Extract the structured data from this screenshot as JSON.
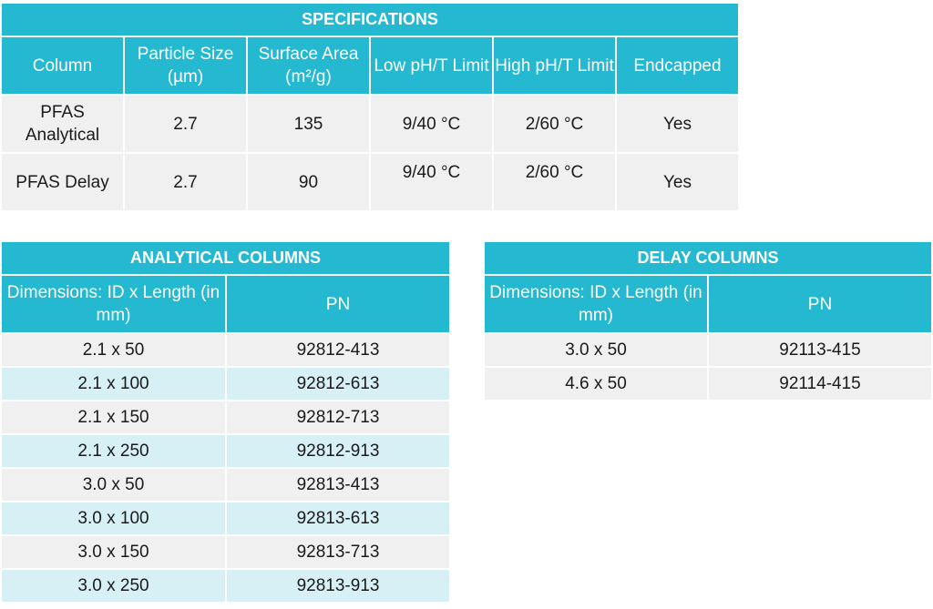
{
  "specifications": {
    "title": "SPECIFICATIONS",
    "headers": [
      "Column",
      "Particle Size (µm)",
      "Surface Area (m²/g)",
      "Low pH/T Limit",
      "High pH/T Limit",
      "Endcapped"
    ],
    "rows": [
      [
        "PFAS Analytical",
        "2.7",
        "135",
        "9/40 °C",
        "2/60 °C",
        "Yes"
      ],
      [
        "PFAS Delay",
        "2.7",
        "90",
        "9/40 °C",
        "2/60 °C",
        "Yes"
      ]
    ]
  },
  "analytical": {
    "title": "ANALYTICAL COLUMNS",
    "headers": [
      "Dimensions: ID x Length (in mm)",
      "PN"
    ],
    "rows": [
      [
        "2.1 x 50",
        "92812-413"
      ],
      [
        "2.1 x 100",
        "92812-613"
      ],
      [
        "2.1 x 150",
        "92812-713"
      ],
      [
        "2.1 x 250",
        "92812-913"
      ],
      [
        "3.0 x 50",
        "92813-413"
      ],
      [
        "3.0 x 100",
        "92813-613"
      ],
      [
        "3.0 x 150",
        "92813-713"
      ],
      [
        "3.0 x 250",
        "92813-913"
      ]
    ]
  },
  "delay": {
    "title": "DELAY COLUMNS",
    "headers": [
      "Dimensions: ID x Length (in mm)",
      "PN"
    ],
    "rows": [
      [
        "3.0 x 50",
        "92113-415"
      ],
      [
        "4.6 x 50",
        "92114-415"
      ]
    ]
  },
  "colors": {
    "accent": "#24b9d0",
    "row_gray": "#f0f0f0",
    "row_blue": "#d6f0f5"
  }
}
